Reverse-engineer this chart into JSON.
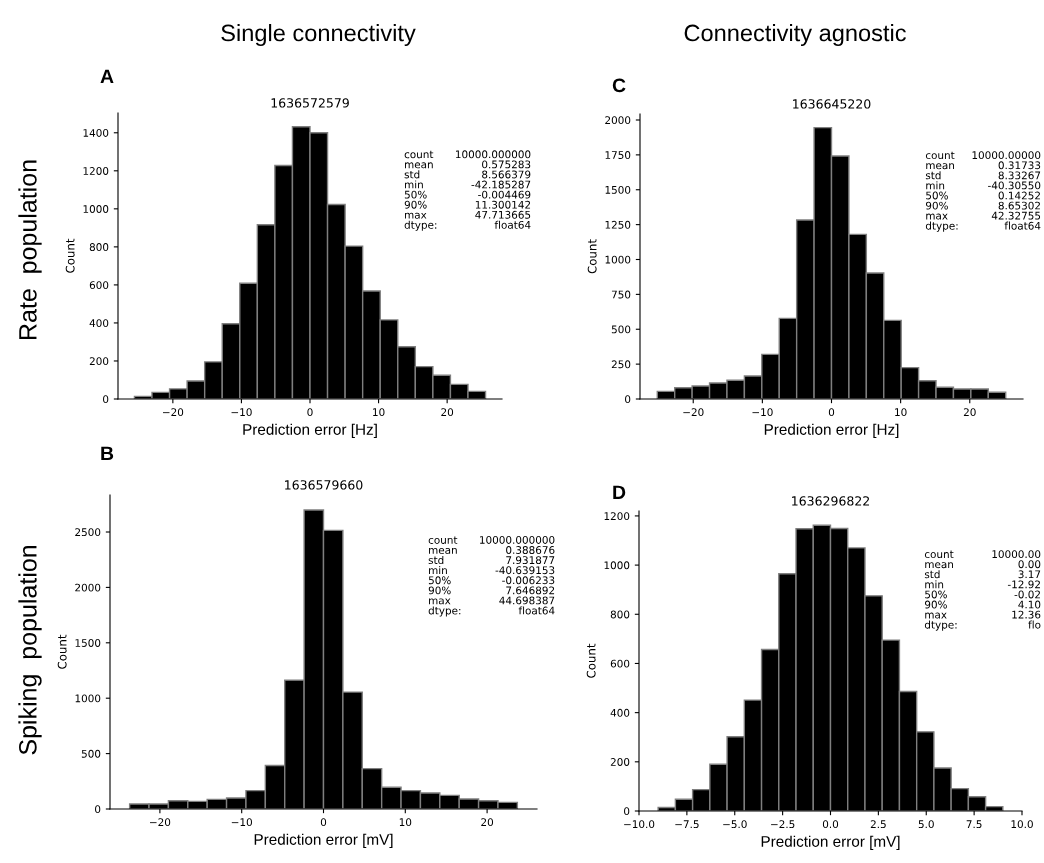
{
  "chart_data": [
    {
      "type": "histogram",
      "title": "1636572579",
      "xlabel": "Prediction error [Hz]",
      "ylabel": "Count",
      "color": "#000000",
      "bins": [
        -25.6,
        -23.04,
        -20.48,
        -17.92,
        -15.36,
        -12.8,
        -10.24,
        -7.68,
        -5.12,
        -2.56,
        0,
        2.56,
        5.12,
        7.68,
        10.24,
        12.8,
        15.36,
        17.92,
        20.48,
        23.04,
        25.6
      ],
      "values": [
        14,
        35,
        53,
        95,
        195,
        396,
        609,
        916,
        1228,
        1432,
        1400,
        1023,
        804,
        568,
        416,
        275,
        170,
        125,
        77,
        40
      ],
      "xlim": [
        -28,
        28
      ],
      "xticks": [
        {
          "value": -20,
          "label": "−20"
        },
        {
          "value": -10,
          "label": "−10"
        },
        0,
        10,
        20
      ],
      "ylim": [
        0,
        1504
      ],
      "yticks": [
        0,
        200,
        400,
        600,
        800,
        1000,
        1200,
        1400
      ],
      "annotations": [
        "A",
        "count\nmean\nstd\nmin\n50%\n90%\nmax\ndtype:",
        "10000.000000\n0.575283\n8.566379\n-42.185287\n-0.004469\n11.300142\n47.713665\nfloat64",
        "Single connectivity",
        "Rate  population"
      ]
    },
    {
      "type": "histogram",
      "title": "1636645220",
      "xlabel": "Prediction error [Hz]",
      "ylabel": "Count",
      "color": "#000000",
      "bins": [
        -25.2,
        -22.68,
        -20.16,
        -17.64,
        -15.12,
        -12.6,
        -10.08,
        -7.56,
        -5.04,
        -2.52,
        0,
        2.52,
        5.04,
        7.56,
        10.08,
        12.6,
        15.12,
        17.64,
        20.16,
        22.68,
        25.2
      ],
      "values": [
        55,
        81,
        93,
        115,
        134,
        165,
        320,
        578,
        1283,
        1945,
        1742,
        1180,
        903,
        564,
        225,
        131,
        84,
        72,
        72,
        48
      ],
      "xlim": [
        -27.7,
        27.7
      ],
      "xticks": [
        {
          "value": -20,
          "label": "−20"
        },
        {
          "value": -10,
          "label": "−10"
        },
        0,
        10,
        20
      ],
      "ylim": [
        0,
        2043
      ],
      "yticks": [
        0,
        250,
        500,
        750,
        1000,
        1250,
        1500,
        1750,
        2000
      ],
      "annotations": [
        "C",
        "count\nmean\nstd\nmin\n50%\n90%\nmax\ndtype:",
        "10000.00000\n0.31733\n8.33267\n-40.30550\n0.14252\n8.65302\n42.32755\nfloat64",
        "Connectivity agnostic"
      ]
    },
    {
      "type": "histogram",
      "title": "1636579660",
      "xlabel": "Prediction error [mV]",
      "ylabel": "Count",
      "color": "#000000",
      "bins": [
        -23.7,
        -21.33,
        -18.96,
        -16.59,
        -14.22,
        -11.85,
        -9.48,
        -7.11,
        -4.74,
        -2.37,
        0,
        2.37,
        4.74,
        7.11,
        9.48,
        11.85,
        14.22,
        16.59,
        18.96,
        21.33,
        23.7
      ],
      "values": [
        45,
        45,
        75,
        69,
        87,
        99,
        166,
        392,
        1163,
        2699,
        2515,
        1055,
        364,
        196,
        166,
        145,
        123,
        90,
        75,
        60
      ],
      "xlim": [
        -26.1,
        26.1
      ],
      "xticks": [
        {
          "value": -20,
          "label": "−20"
        },
        {
          "value": -10,
          "label": "−10"
        },
        0,
        10,
        20
      ],
      "ylim": [
        0,
        2834
      ],
      "yticks": [
        0,
        500,
        1000,
        1500,
        2000,
        2500
      ],
      "annotations": [
        "B",
        "count\nmean\nstd\nmin\n50%\n90%\nmax\ndtype:",
        "10000.000000\n0.388676\n7.931877\n-40.639153\n-0.006233\n7.646892\n44.698387\nfloat64",
        "Spiking  population"
      ]
    },
    {
      "type": "histogram",
      "title": "1636296822",
      "xlabel": "Prediction error [mV]",
      "ylabel": "Count",
      "color": "#000000",
      "bins": [
        -9.0,
        -8.1,
        -7.2,
        -6.3,
        -5.4,
        -4.5,
        -3.6,
        -2.7,
        -1.8,
        -0.9,
        0,
        0.9,
        1.8,
        2.7,
        3.6,
        4.5,
        5.4,
        6.3,
        7.2,
        8.1,
        9.0
      ],
      "values": [
        14,
        48,
        87,
        190,
        302,
        451,
        657,
        965,
        1148,
        1162,
        1149,
        1070,
        875,
        695,
        486,
        322,
        175,
        91,
        58,
        18
      ],
      "xlim": [
        -10,
        10
      ],
      "xticks": [
        {
          "value": -10,
          "label": "−10.0"
        },
        {
          "value": -7.5,
          "label": "−7.5"
        },
        {
          "value": -5,
          "label": "−5.0"
        },
        {
          "value": -2.5,
          "label": "−2.5"
        },
        {
          "value": 0,
          "label": "0.0"
        },
        {
          "value": 2.5,
          "label": "2.5"
        },
        {
          "value": 5,
          "label": "5.0"
        },
        {
          "value": 7.5,
          "label": "7.5"
        },
        {
          "value": 10,
          "label": "10.0"
        }
      ],
      "ylim": [
        0,
        1220
      ],
      "yticks": [
        0,
        200,
        400,
        600,
        800,
        1000,
        1200
      ],
      "annotations": [
        "D",
        "count\nmean\nstd\nmin\n50%\n90%\nmax\ndtype:",
        "10000.00\n0.00\n3.17\n-12.92\n-0.02\n4.10\n12.36\nflo"
      ]
    }
  ]
}
